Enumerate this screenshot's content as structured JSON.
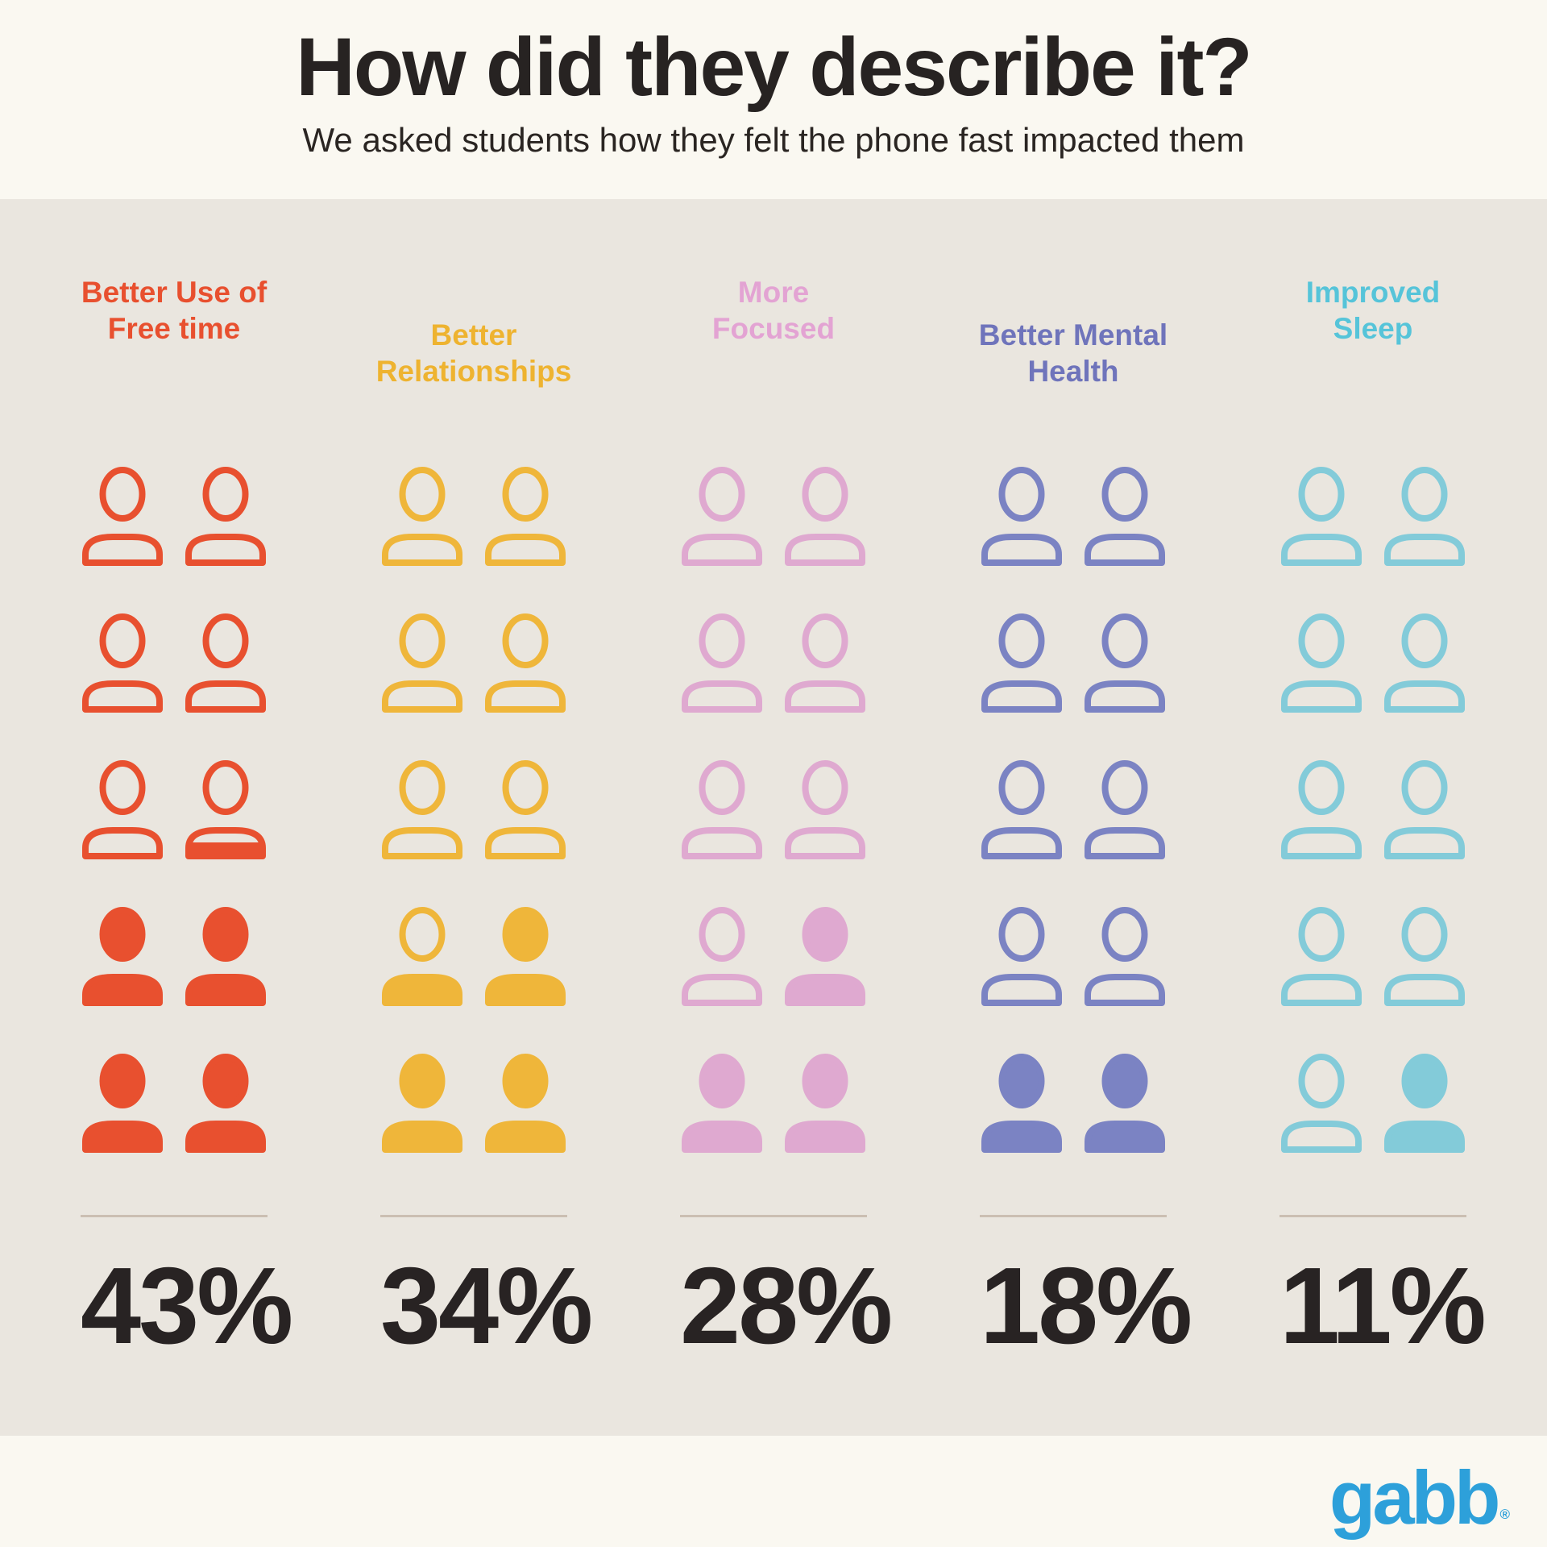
{
  "header": {
    "title": "How did they describe it?",
    "subtitle": "We asked students how they felt the phone fast impacted them"
  },
  "chart_data": {
    "type": "pictogram",
    "title": "How did they describe it?",
    "subtitle": "We asked students how they felt the phone fast impacted them",
    "units_per_category": 10,
    "unit_icon": "person",
    "fill_direction": "bottom-up",
    "categories": [
      "Better Use of Free time",
      "Better Relationships",
      "More Focused",
      "Better Mental Health",
      "Improved Sleep"
    ],
    "values": [
      43,
      34,
      28,
      18,
      11
    ],
    "value_labels": [
      "43%",
      "34%",
      "28%",
      "18%",
      "11%"
    ],
    "colors": [
      "#e8502f",
      "#efb63a",
      "#dfa9d0",
      "#7b83c3",
      "#83cbd9"
    ]
  },
  "columns": [
    {
      "label": "Better Use of\nFree time",
      "label_color": "#e8502f",
      "icon_color": "#e8502f",
      "value_label": "43%",
      "offset": false,
      "icons": [
        "o",
        "o",
        "o",
        "o",
        "o",
        "pb",
        "f",
        "f",
        "f",
        "f"
      ]
    },
    {
      "label": "Better\nRelationships",
      "label_color": "#eeb330",
      "icon_color": "#efb63a",
      "value_label": "34%",
      "offset": true,
      "icons": [
        "o",
        "o",
        "o",
        "o",
        "o",
        "o",
        "b",
        "f",
        "f",
        "f"
      ]
    },
    {
      "label": "More\nFocused",
      "label_color": "#e3a3d3",
      "icon_color": "#dfa9d0",
      "value_label": "28%",
      "offset": false,
      "icons": [
        "o",
        "o",
        "o",
        "o",
        "o",
        "o",
        "o",
        "f",
        "f",
        "f"
      ]
    },
    {
      "label": "Better Mental\nHealth",
      "label_color": "#6f74bb",
      "icon_color": "#7b83c3",
      "value_label": "18%",
      "offset": true,
      "icons": [
        "o",
        "o",
        "o",
        "o",
        "o",
        "o",
        "o",
        "o",
        "f",
        "f"
      ]
    },
    {
      "label": "Improved\nSleep",
      "label_color": "#56c4d9",
      "icon_color": "#83cbd9",
      "value_label": "11%",
      "offset": false,
      "icons": [
        "o",
        "o",
        "o",
        "o",
        "o",
        "o",
        "o",
        "o",
        "o",
        "f"
      ]
    }
  ],
  "footer": {
    "logo_text": "gabb",
    "logo_registered": "®",
    "logo_color": "#2da0da"
  },
  "style": {
    "band_background": "#faf8f1",
    "main_background": "#eae6df",
    "divider_color": "#cbbfb2",
    "text_color": "#272322"
  }
}
